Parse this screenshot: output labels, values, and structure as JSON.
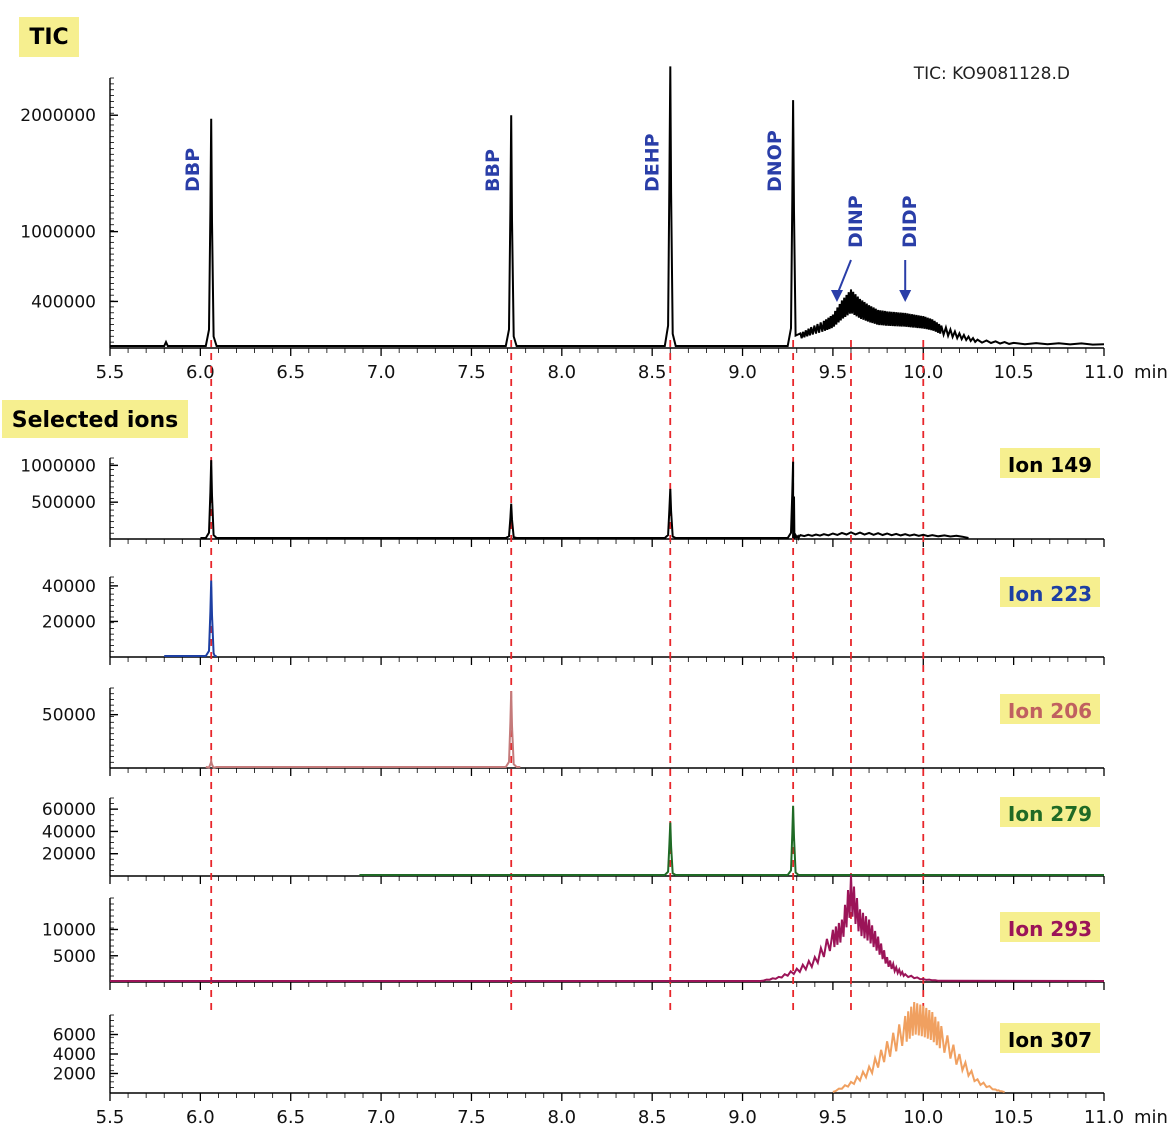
{
  "chart_data": {
    "type": "line",
    "x_unit": "min",
    "xlim": [
      5.5,
      11.0
    ],
    "x_ticks": [
      "5.5",
      "6.0",
      "6.5",
      "7.0",
      "7.5",
      "8.0",
      "8.5",
      "9.0",
      "9.5",
      "10.0",
      "10.5",
      "11.0"
    ],
    "tic": {
      "badge": "TIC",
      "file_label": "TIC: KO9081128.D",
      "color": "#000000",
      "ylim": [
        0,
        2400000
      ],
      "y_ticks": [
        {
          "label": "2000000",
          "value": 2000000
        },
        {
          "label": "1000000",
          "value": 1000000
        },
        {
          "label": "400000",
          "value": 400000
        }
      ],
      "peaks": [
        {
          "name": "DBP",
          "x": 6.06,
          "y": 1970000
        },
        {
          "name": "BBP",
          "x": 7.72,
          "y": 2000000
        },
        {
          "name": "DEHP",
          "x": 8.6,
          "y": 2420000
        },
        {
          "name": "DNOP",
          "x": 9.28,
          "y": 2130000
        }
      ],
      "arrows": [
        {
          "name": "DINP",
          "x": 9.6
        },
        {
          "name": "DIDP",
          "x": 9.9
        }
      ],
      "hump": [
        [
          9.28,
          0.0
        ],
        [
          9.32,
          80000
        ],
        [
          9.38,
          120000
        ],
        [
          9.45,
          160000
        ],
        [
          9.5,
          200000
        ],
        [
          9.55,
          290000
        ],
        [
          9.6,
          360000
        ],
        [
          9.65,
          300000
        ],
        [
          9.7,
          260000
        ],
        [
          9.75,
          230000
        ],
        [
          9.8,
          220000
        ],
        [
          9.85,
          215000
        ],
        [
          9.9,
          210000
        ],
        [
          9.95,
          200000
        ],
        [
          10.0,
          190000
        ],
        [
          10.05,
          170000
        ],
        [
          10.1,
          130000
        ],
        [
          10.2,
          80000
        ],
        [
          10.3,
          40000
        ],
        [
          10.5,
          20000
        ],
        [
          11.0,
          15000
        ]
      ]
    },
    "selected_ions_title": "Selected ions",
    "marker_times": [
      6.06,
      7.72,
      8.6,
      9.28,
      9.6,
      10.0
    ],
    "ions": [
      {
        "name": "Ion 149",
        "color": "#000000",
        "label_color": "#000000",
        "ylim": [
          0,
          1100000
        ],
        "y_ticks": [
          {
            "label": "1000000",
            "value": 1000000
          },
          {
            "label": "500000",
            "value": 500000
          }
        ],
        "x_range": [
          6.0,
          10.25
        ],
        "peaks": [
          [
            6.06,
            1070000
          ],
          [
            7.72,
            480000
          ],
          [
            8.6,
            680000
          ],
          [
            9.28,
            1050000
          ]
        ],
        "hump": [
          [
            9.28,
            0
          ],
          [
            9.32,
            30000
          ],
          [
            9.45,
            40000
          ],
          [
            9.6,
            60000
          ],
          [
            9.75,
            50000
          ],
          [
            9.9,
            40000
          ],
          [
            10.05,
            30000
          ],
          [
            10.25,
            20000
          ]
        ]
      },
      {
        "name": "Ion 223",
        "color": "#1d3fa3",
        "label_color": "#1d3fa3",
        "ylim": [
          0,
          45000
        ],
        "y_ticks": [
          {
            "label": "40000",
            "value": 40000
          },
          {
            "label": "20000",
            "value": 20000
          }
        ],
        "x_range": [
          5.8,
          6.08
        ],
        "peaks": [
          [
            6.06,
            43000
          ]
        ],
        "hump": []
      },
      {
        "name": "Ion 206",
        "color": "#c47a7a",
        "label_color": "#c06060",
        "ylim": [
          0,
          75000
        ],
        "y_ticks": [
          {
            "label": "50000",
            "value": 50000
          }
        ],
        "x_range": [
          7.67,
          7.77
        ],
        "peaks": [
          [
            6.06,
            6000
          ],
          [
            7.72,
            72000
          ]
        ],
        "hump": []
      },
      {
        "name": "Ion 279",
        "color": "#1f6a25",
        "label_color": "#1f6a25",
        "ylim": [
          0,
          70000
        ],
        "y_ticks": [
          {
            "label": "60000",
            "value": 60000
          },
          {
            "label": "40000",
            "value": 40000
          },
          {
            "label": "20000",
            "value": 20000
          }
        ],
        "x_range": [
          6.88,
          11.0
        ],
        "peaks": [
          [
            8.6,
            48000
          ],
          [
            9.28,
            63000
          ]
        ],
        "hump": []
      },
      {
        "name": "Ion 293",
        "color": "#9b1458",
        "label_color": "#9b1458",
        "ylim": [
          0,
          16000
        ],
        "y_ticks": [
          {
            "label": "10000",
            "value": 10000
          },
          {
            "label": "5000",
            "value": 5000
          }
        ],
        "x_range": [
          5.5,
          11.0
        ],
        "peaks": [],
        "hump": [
          [
            9.1,
            0
          ],
          [
            9.2,
            600
          ],
          [
            9.3,
            1800
          ],
          [
            9.4,
            3500
          ],
          [
            9.5,
            7500
          ],
          [
            9.55,
            9000
          ],
          [
            9.6,
            15500
          ],
          [
            9.65,
            10500
          ],
          [
            9.7,
            9000
          ],
          [
            9.75,
            6500
          ],
          [
            9.8,
            3500
          ],
          [
            9.85,
            2000
          ],
          [
            9.9,
            1000
          ],
          [
            10.0,
            300
          ],
          [
            10.1,
            0
          ]
        ]
      },
      {
        "name": "Ion 307",
        "color": "#f0a060",
        "label_color": "#000000",
        "ylim": [
          0,
          8000
        ],
        "y_ticks": [
          {
            "label": "6000",
            "value": 6000
          },
          {
            "label": "4000",
            "value": 4000
          },
          {
            "label": "2000",
            "value": 2000
          }
        ],
        "x_range": [
          9.5,
          10.45
        ],
        "peaks": [],
        "hump": [
          [
            9.5,
            0
          ],
          [
            9.6,
            800
          ],
          [
            9.7,
            2000
          ],
          [
            9.8,
            4000
          ],
          [
            9.9,
            6000
          ],
          [
            9.95,
            7100
          ],
          [
            10.0,
            6800
          ],
          [
            10.05,
            6300
          ],
          [
            10.1,
            5200
          ],
          [
            10.2,
            3000
          ],
          [
            10.3,
            1000
          ],
          [
            10.4,
            200
          ],
          [
            10.45,
            0
          ]
        ]
      }
    ],
    "x_axis_unit_label": "min"
  }
}
